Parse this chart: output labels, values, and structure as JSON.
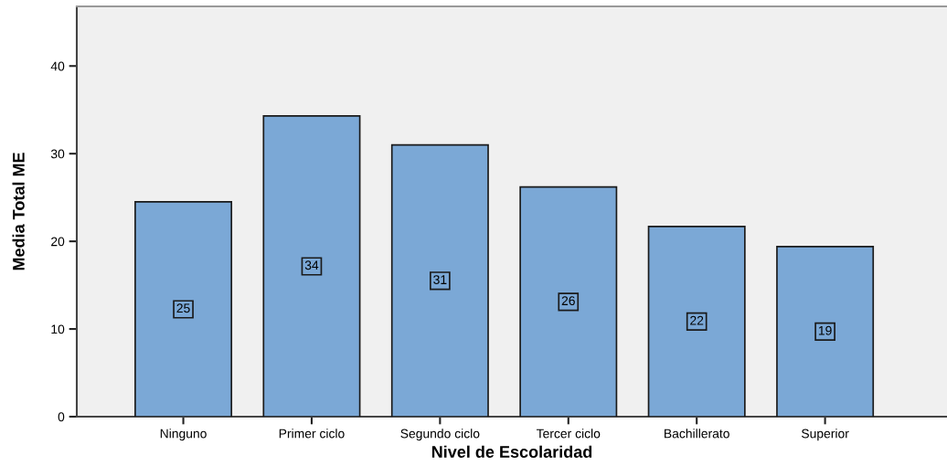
{
  "chart_data": {
    "type": "bar",
    "xlabel": "Nivel de Escolaridad",
    "ylabel": "Media Total ME",
    "categories": [
      "Ninguno",
      "Primer ciclo",
      "Segundo ciclo",
      "Tercer ciclo",
      "Bachillerato",
      "Superior"
    ],
    "values": [
      24.5,
      34.3,
      31.0,
      26.2,
      21.7,
      19.4
    ],
    "value_labels": [
      "25",
      "34",
      "31",
      "26",
      "22",
      "19"
    ],
    "color": "#7ba8d6",
    "ylim": [
      0,
      46.8
    ],
    "yticks": [
      0,
      10,
      20,
      30,
      40
    ],
    "grid": false
  }
}
